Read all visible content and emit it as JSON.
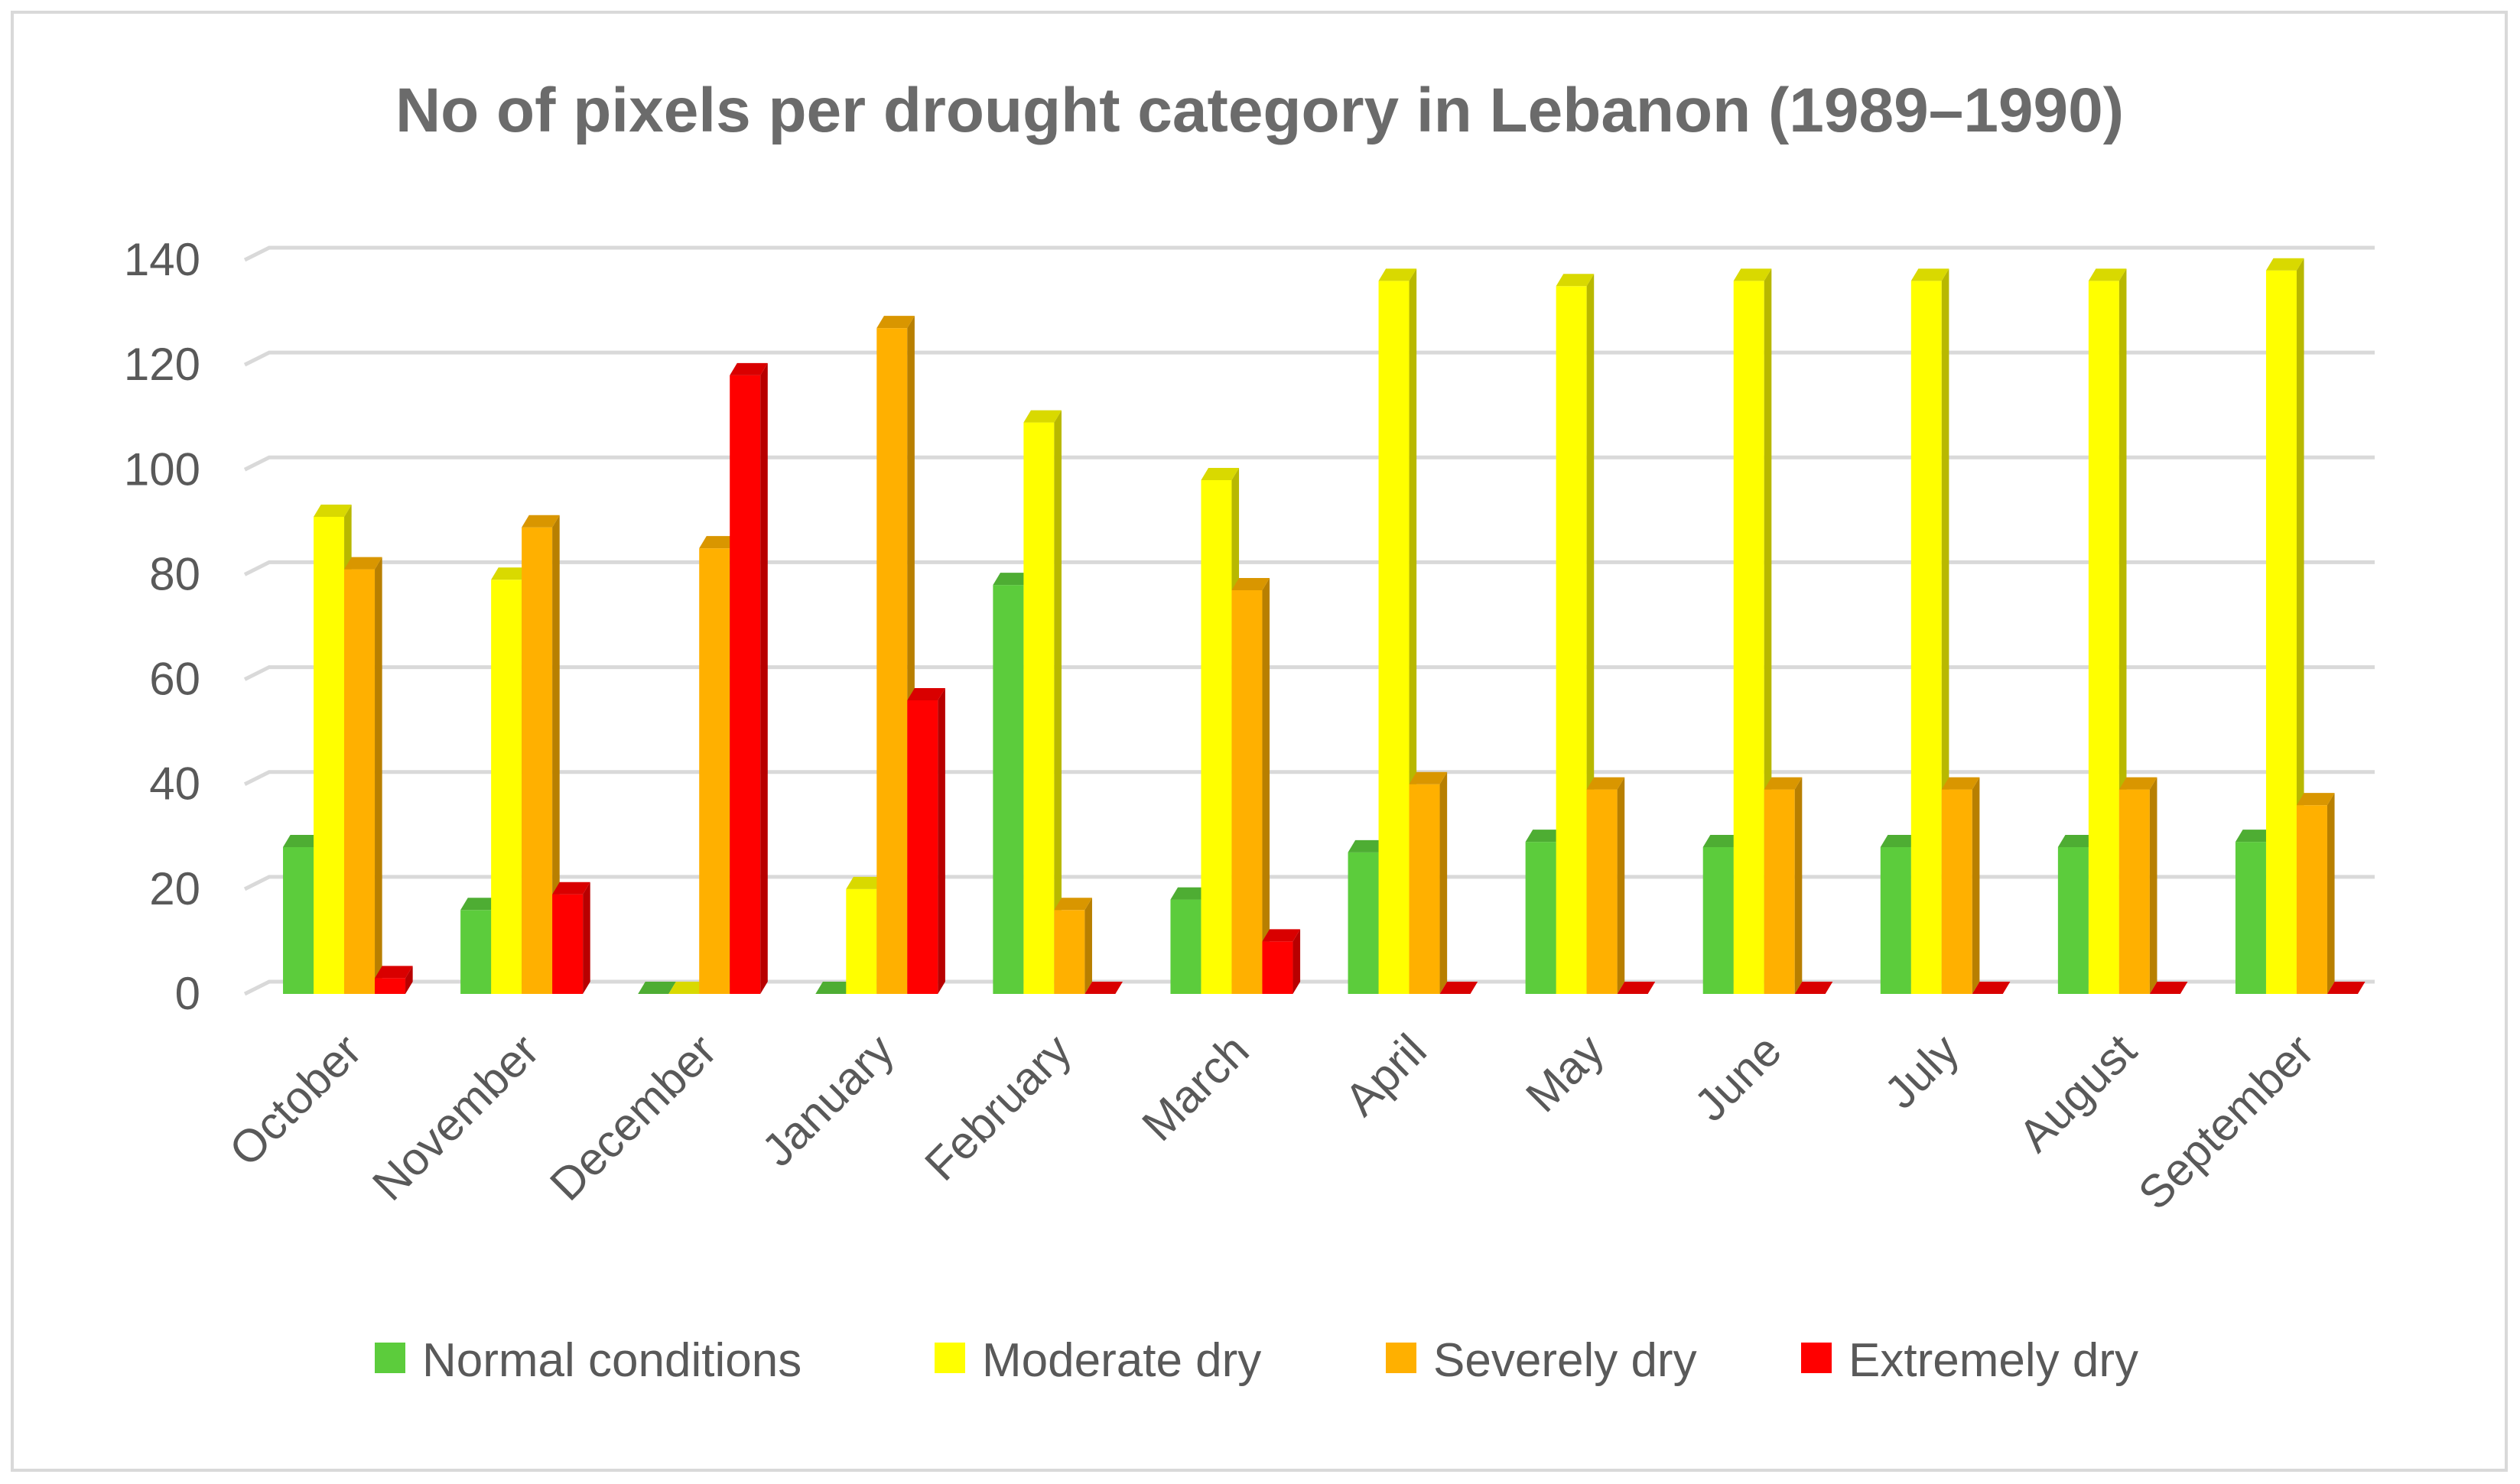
{
  "chart_data": {
    "type": "bar",
    "title": "No of pixels per drought category in Lebanon (1989–1990)",
    "xlabel": "",
    "ylabel": "",
    "ylim": [
      0,
      140
    ],
    "yticks": [
      0,
      20,
      40,
      60,
      80,
      100,
      120,
      140
    ],
    "grid": true,
    "legend_position": "bottom",
    "categories": [
      "October",
      "November",
      "December",
      "January",
      "February",
      "March",
      "April",
      "May",
      "June",
      "July",
      "August",
      "September"
    ],
    "series": [
      {
        "name": "Normal conditions",
        "color": "#5ccc3c",
        "values": [
          28,
          16,
          0,
          0,
          78,
          18,
          27,
          29,
          28,
          28,
          28,
          29
        ]
      },
      {
        "name": "Moderate dry",
        "color": "#ffff00",
        "values": [
          91,
          79,
          0,
          20,
          109,
          98,
          136,
          135,
          136,
          136,
          136,
          138
        ]
      },
      {
        "name": "Severely dry",
        "color": "#ffb000",
        "values": [
          81,
          89,
          85,
          127,
          16,
          77,
          40,
          39,
          39,
          39,
          39,
          36
        ]
      },
      {
        "name": "Extremely dry",
        "color": "#ff0000",
        "values": [
          3,
          19,
          118,
          56,
          0,
          10,
          0,
          0,
          0,
          0,
          0,
          0
        ]
      }
    ]
  }
}
